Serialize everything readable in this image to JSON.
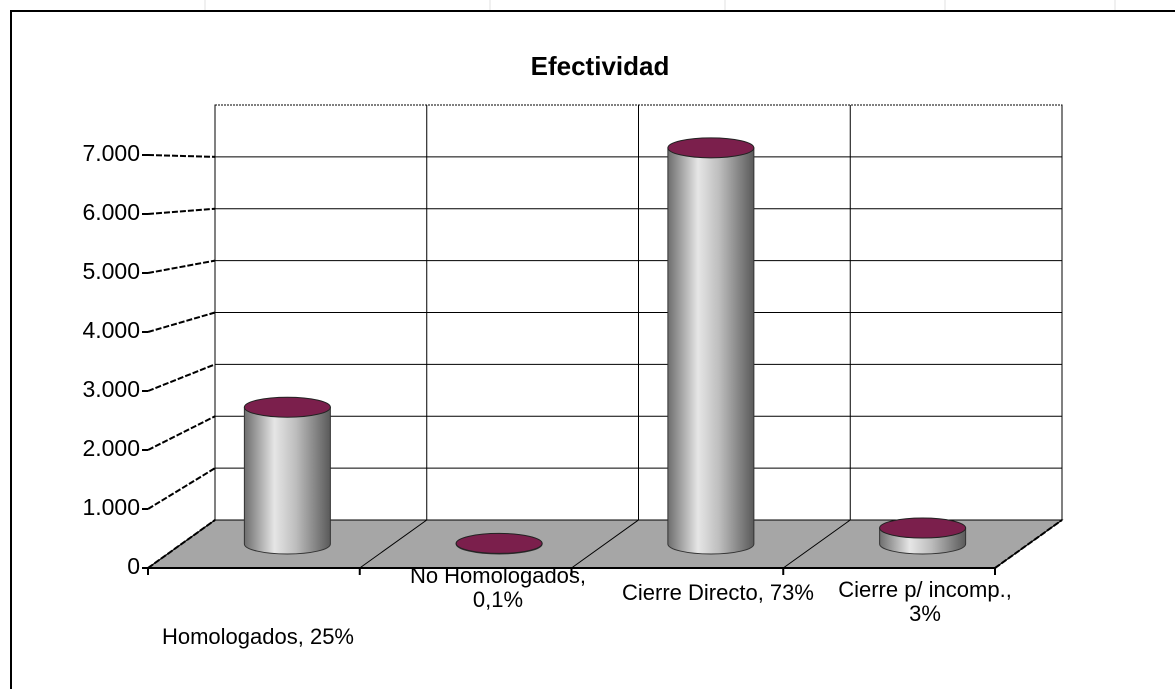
{
  "chart_data": {
    "type": "bar",
    "title": "Efectividad",
    "categories": [
      "Homologados, 25%",
      "No Homologados, 0,1%",
      "Cierre Directo, 73%",
      "Cierre p/ incomp., 3%"
    ],
    "values": [
      2400,
      10,
      6950,
      280
    ],
    "color": "#9a9a9a",
    "top_color": "#7b1f4c",
    "ylim": [
      0,
      8000
    ],
    "yticks": [
      0,
      {
        "value": 1000,
        "label": "1.000"
      },
      {
        "value": 2000,
        "label": "2.000"
      },
      {
        "value": 3000,
        "label": "3.000"
      },
      {
        "value": 4000,
        "label": "4.000"
      },
      {
        "value": 5000,
        "label": "5.000"
      },
      {
        "value": 6000,
        "label": "6.000"
      },
      {
        "value": 7000,
        "label": "7.000"
      }
    ],
    "grid": true
  }
}
